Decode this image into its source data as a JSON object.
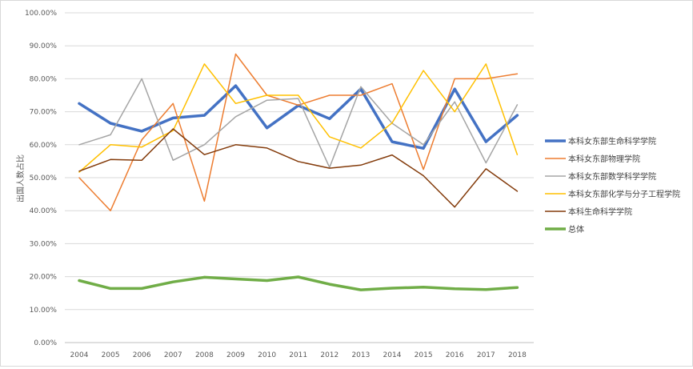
{
  "chart_data": {
    "type": "line",
    "title": "",
    "xlabel": "",
    "ylabel": "出国人数占比",
    "ylim": [
      0,
      1
    ],
    "y_ticks": [
      "0.00%",
      "10.00%",
      "20.00%",
      "30.00%",
      "40.00%",
      "50.00%",
      "60.00%",
      "70.00%",
      "80.00%",
      "90.00%",
      "100.00%"
    ],
    "grid": true,
    "legend_position": "right",
    "x": [
      "2004",
      "2005",
      "2006",
      "2007",
      "2008",
      "2009",
      "2010",
      "2011",
      "2012",
      "2013",
      "2014",
      "2015",
      "2016",
      "2017",
      "2018"
    ],
    "series": [
      {
        "name": "本科女东部生命科学学院",
        "color": "#4472c4",
        "width": 3.5,
        "values": [
          0.725,
          0.665,
          0.641,
          0.681,
          0.689,
          0.779,
          0.651,
          0.719,
          0.679,
          0.769,
          0.609,
          0.589,
          0.769,
          0.609,
          0.689
        ]
      },
      {
        "name": "本科女东部物理学院",
        "color": "#ed7d31",
        "width": 1.5,
        "values": [
          0.5,
          0.4,
          0.615,
          0.725,
          0.429,
          0.875,
          0.75,
          0.72,
          0.75,
          0.75,
          0.785,
          0.525,
          0.8,
          0.8,
          0.815
        ]
      },
      {
        "name": "本科女东部数学科学学院",
        "color": "#a5a5a5",
        "width": 1.5,
        "values": [
          0.6,
          0.63,
          0.8,
          0.553,
          0.6,
          0.685,
          0.735,
          0.74,
          0.531,
          0.776,
          0.665,
          0.6,
          0.73,
          0.545,
          0.721
        ]
      },
      {
        "name": "本科女东部化学与分子工程学院",
        "color": "#ffc000",
        "width": 1.5,
        "values": [
          0.517,
          0.6,
          0.593,
          0.643,
          0.845,
          0.725,
          0.75,
          0.75,
          0.624,
          0.59,
          0.666,
          0.825,
          0.7,
          0.845,
          0.57
        ]
      },
      {
        "name": "本科生命科学学院",
        "color": "#843c0c",
        "width": 1.5,
        "values": [
          0.52,
          0.555,
          0.553,
          0.648,
          0.57,
          0.6,
          0.59,
          0.549,
          0.529,
          0.538,
          0.569,
          0.506,
          0.411,
          0.527,
          0.459
        ]
      },
      {
        "name": "总体",
        "color": "#70ad47",
        "width": 3.5,
        "values": [
          0.188,
          0.164,
          0.164,
          0.184,
          0.198,
          0.193,
          0.188,
          0.199,
          0.177,
          0.16,
          0.165,
          0.168,
          0.163,
          0.161,
          0.167
        ]
      }
    ]
  }
}
